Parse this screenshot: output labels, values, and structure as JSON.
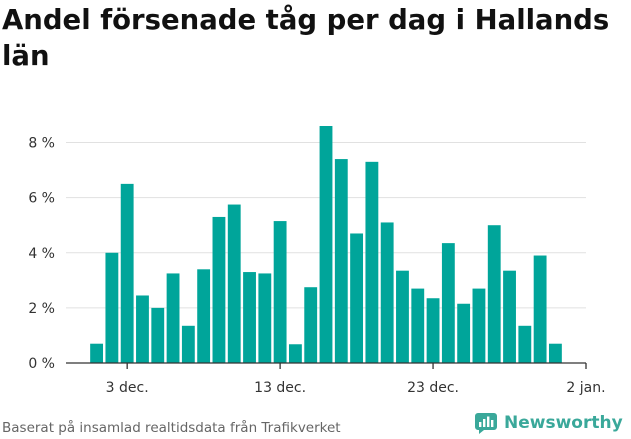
{
  "title": "Andel försenade tåg per dag i Hallands län",
  "source": "Baserat på insamlad realtidsdata från Trafikverket",
  "brand": {
    "name": "Newsworthy",
    "icon": "newsworthy-logo-icon",
    "color": "#3aa89a"
  },
  "colors": {
    "bar": "#00a59a",
    "grid": "#e1e1e1",
    "axis": "#333333"
  },
  "chart_data": {
    "type": "bar",
    "title": "Andel försenade tåg per dag i Hallands län",
    "xlabel": "",
    "ylabel": "",
    "grid": true,
    "x_tick_labels": [
      "3 dec.",
      "13 dec.",
      "23 dec.",
      "2 jan."
    ],
    "y_tick_labels": [
      "0 %",
      "2 %",
      "4 %",
      "6 %",
      "8 %"
    ],
    "ylim": [
      0,
      8.6
    ],
    "xlim": [
      "2023-11-29",
      "2024-01-02"
    ],
    "categories": [
      "2023-12-01",
      "2023-12-02",
      "2023-12-03",
      "2023-12-04",
      "2023-12-05",
      "2023-12-06",
      "2023-12-07",
      "2023-12-08",
      "2023-12-09",
      "2023-12-10",
      "2023-12-11",
      "2023-12-12",
      "2023-12-13",
      "2023-12-14",
      "2023-12-15",
      "2023-12-16",
      "2023-12-17",
      "2023-12-18",
      "2023-12-19",
      "2023-12-20",
      "2023-12-21",
      "2023-12-22",
      "2023-12-23",
      "2023-12-24",
      "2023-12-25",
      "2023-12-26",
      "2023-12-27",
      "2023-12-28",
      "2023-12-29",
      "2023-12-30",
      "2023-12-31"
    ],
    "values": [
      0.7,
      4.0,
      6.5,
      2.45,
      2.0,
      3.25,
      1.35,
      3.4,
      5.3,
      5.75,
      3.3,
      3.25,
      5.15,
      0.68,
      2.75,
      8.6,
      7.4,
      4.7,
      7.3,
      5.1,
      3.35,
      2.7,
      2.35,
      4.35,
      2.15,
      2.7,
      5.0,
      3.35,
      1.35,
      3.9,
      0.7
    ]
  }
}
